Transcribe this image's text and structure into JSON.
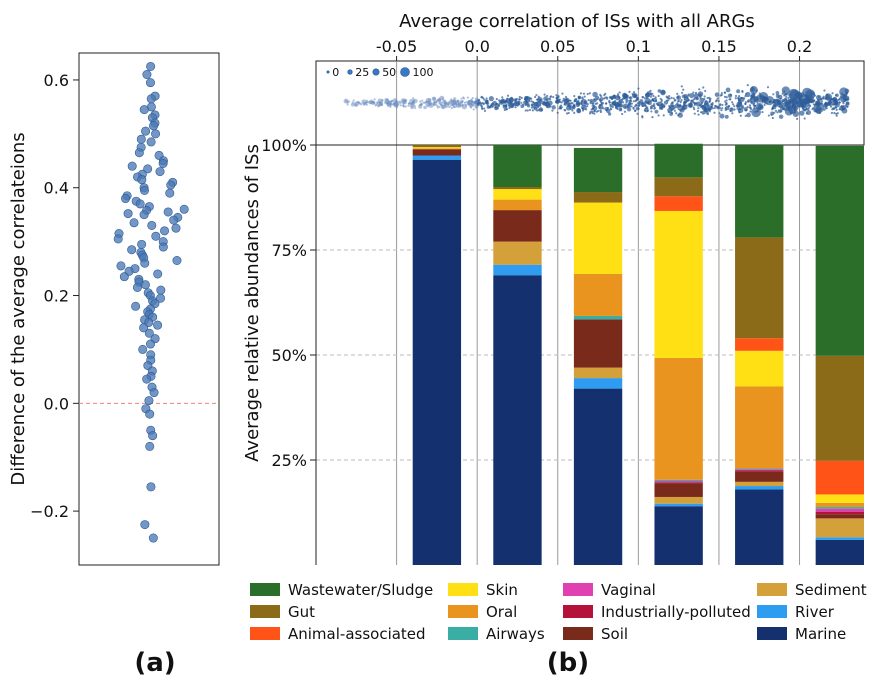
{
  "panel_labels": {
    "a": "(a)",
    "b": "(b)"
  },
  "chart_data": [
    {
      "id": "panel-a",
      "type": "scatter",
      "ylabel": "Difference of the average correlateions",
      "ylim": [
        -0.3,
        0.65
      ],
      "yticks": [
        0.6,
        0.4,
        0.2,
        0.0,
        -0.2
      ],
      "ytick_labels": [
        "0.6",
        "0.4",
        "0.2",
        "0.0",
        "−0.2"
      ],
      "reference_line": {
        "y": 0.0,
        "style": "dashed",
        "color": "#f08080"
      },
      "marker_color": "#4a78b5",
      "y": [
        0.625,
        0.61,
        0.595,
        0.57,
        0.565,
        0.55,
        0.545,
        0.535,
        0.53,
        0.52,
        0.515,
        0.505,
        0.5,
        0.49,
        0.485,
        0.475,
        0.465,
        0.46,
        0.45,
        0.445,
        0.44,
        0.435,
        0.43,
        0.425,
        0.42,
        0.415,
        0.41,
        0.405,
        0.4,
        0.395,
        0.39,
        0.385,
        0.38,
        0.375,
        0.37,
        0.365,
        0.36,
        0.358,
        0.355,
        0.352,
        0.35,
        0.345,
        0.34,
        0.335,
        0.33,
        0.325,
        0.32,
        0.315,
        0.31,
        0.305,
        0.3,
        0.295,
        0.29,
        0.285,
        0.28,
        0.275,
        0.27,
        0.265,
        0.26,
        0.255,
        0.25,
        0.245,
        0.24,
        0.235,
        0.23,
        0.225,
        0.22,
        0.215,
        0.21,
        0.205,
        0.2,
        0.195,
        0.19,
        0.185,
        0.18,
        0.175,
        0.17,
        0.165,
        0.16,
        0.155,
        0.15,
        0.145,
        0.14,
        0.13,
        0.12,
        0.11,
        0.1,
        0.09,
        0.08,
        0.07,
        0.06,
        0.05,
        0.045,
        0.03,
        0.02,
        0.005,
        -0.01,
        -0.02,
        -0.05,
        -0.06,
        -0.08,
        -0.155,
        -0.225,
        -0.25
      ]
    },
    {
      "id": "panel-b-top",
      "type": "scatter",
      "title": "Average correlation of ISs with all ARGs",
      "xlim": [
        -0.1,
        0.24
      ],
      "xticks": [
        -0.05,
        0.0,
        0.05,
        0.1,
        0.15,
        0.2
      ],
      "xtick_labels": [
        "-0.05",
        "0.0",
        "0.05",
        "0.1",
        "0.15",
        "0.2"
      ],
      "size_legend": {
        "values": [
          0,
          25,
          50,
          100
        ],
        "labels": [
          "0",
          "25",
          "50",
          "100"
        ],
        "placement": "top-left"
      },
      "marker_color": "#2e5d99"
    },
    {
      "id": "panel-b-bars",
      "type": "bar",
      "stacked": true,
      "ylabel": "Average relative abundances of ISs",
      "ylim": [
        0,
        100
      ],
      "yticks": [
        100,
        75,
        50,
        25
      ],
      "ytick_labels": [
        "100%",
        "75%",
        "50%",
        "25%"
      ],
      "grid": "horizontal dashed",
      "bins": [
        -0.1,
        -0.05,
        0.0,
        0.05,
        0.1,
        0.15,
        0.2
      ],
      "series": [
        {
          "name": "Marine",
          "color": "#14306e",
          "values": [
            0,
            96.5,
            69,
            42,
            14,
            18,
            6
          ]
        },
        {
          "name": "River",
          "color": "#2e9cf0",
          "values": [
            0,
            1,
            2.5,
            2.5,
            0.6,
            0.8,
            0.6
          ]
        },
        {
          "name": "Sediment",
          "color": "#d4a03a",
          "values": [
            0,
            0,
            5.5,
            2.5,
            1.6,
            1,
            4.5
          ]
        },
        {
          "name": "Soil",
          "color": "#7a2a1a",
          "values": [
            0,
            1.5,
            7.5,
            11.5,
            3.3,
            2.5,
            1
          ]
        },
        {
          "name": "Industrially-polluted",
          "color": "#b5123b",
          "values": [
            0,
            0,
            0,
            0,
            0.2,
            0.2,
            0.6
          ]
        },
        {
          "name": "Vaginal",
          "color": "#e040b0",
          "values": [
            0,
            0,
            0,
            0,
            0.3,
            0.3,
            0.7
          ]
        },
        {
          "name": "Airways",
          "color": "#3aaea5",
          "values": [
            0,
            0,
            0,
            0.8,
            0.3,
            0.2,
            0.4
          ]
        },
        {
          "name": "Oral",
          "color": "#e8941e",
          "values": [
            0,
            0.2,
            2.5,
            10,
            29,
            19.5,
            1
          ]
        },
        {
          "name": "Skin",
          "color": "#ffe014",
          "values": [
            0,
            0.3,
            2.5,
            17,
            35,
            8.5,
            2
          ]
        },
        {
          "name": "Animal-associated",
          "color": "#ff5317",
          "values": [
            0,
            0,
            0,
            0,
            3.5,
            3,
            8
          ]
        },
        {
          "name": "Gut",
          "color": "#8b6a18",
          "values": [
            0,
            0.5,
            0.5,
            2.5,
            4.5,
            24,
            25
          ]
        },
        {
          "name": "Wastewater/Sludge",
          "color": "#2a6e2a",
          "values": [
            0,
            0,
            10,
            10.5,
            8,
            22,
            50
          ]
        }
      ]
    }
  ],
  "legend": [
    {
      "label": "Wastewater/Sludge",
      "color": "#2a6e2a"
    },
    {
      "label": "Gut",
      "color": "#8b6a18"
    },
    {
      "label": "Animal-associated",
      "color": "#ff5317"
    },
    {
      "label": "Skin",
      "color": "#ffe014"
    },
    {
      "label": "Oral",
      "color": "#e8941e"
    },
    {
      "label": "Airways",
      "color": "#3aaea5"
    },
    {
      "label": "Vaginal",
      "color": "#e040b0"
    },
    {
      "label": "Industrially-polluted",
      "color": "#b5123b"
    },
    {
      "label": "Soil",
      "color": "#7a2a1a"
    },
    {
      "label": "Sediment",
      "color": "#d4a03a"
    },
    {
      "label": "River",
      "color": "#2e9cf0"
    },
    {
      "label": "Marine",
      "color": "#14306e"
    }
  ]
}
